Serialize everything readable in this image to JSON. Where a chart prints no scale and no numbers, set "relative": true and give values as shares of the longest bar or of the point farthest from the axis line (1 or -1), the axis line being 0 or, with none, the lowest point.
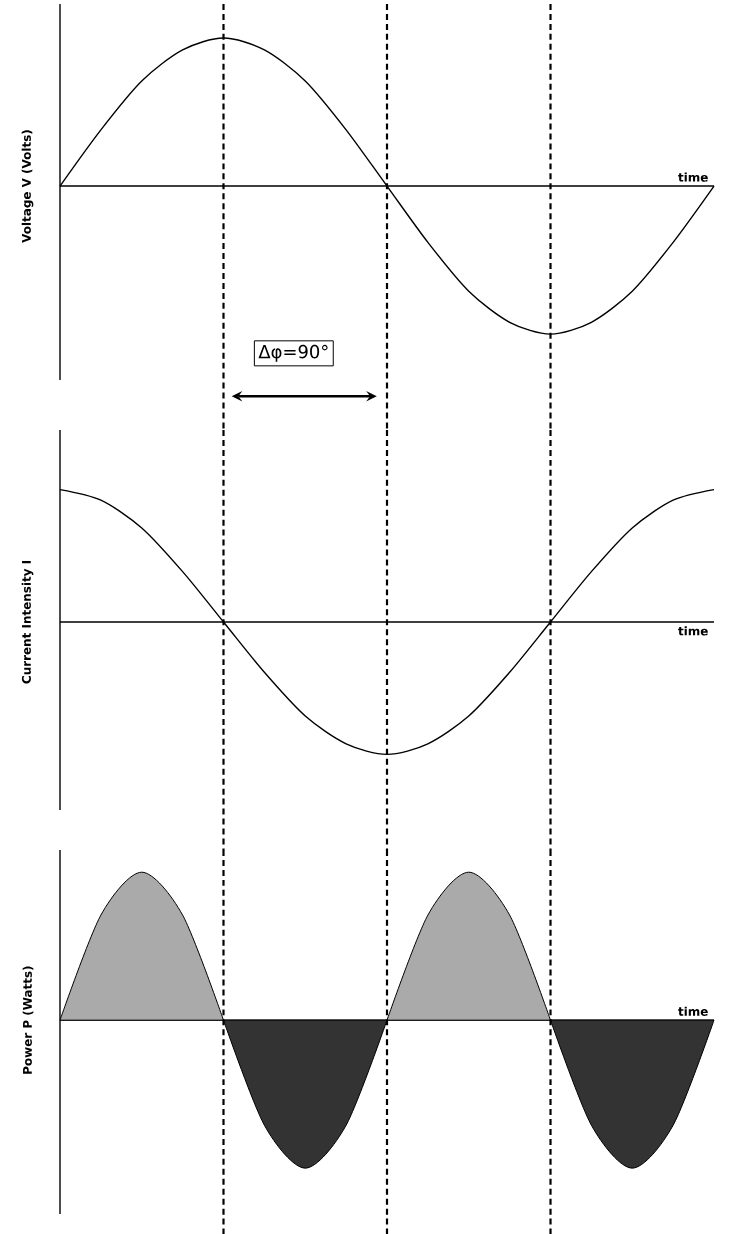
{
  "chart_data": [
    {
      "type": "line",
      "ylabel": "Voltage V (Volts)",
      "xlabel": "time",
      "relative": true,
      "grid": "x",
      "categories": [
        null,
        null,
        null,
        null,
        null,
        null,
        null,
        null,
        null,
        null,
        null,
        null,
        null,
        null,
        null,
        null,
        null
      ],
      "series": [
        {
          "color": "#000000",
          "values": [
            0,
            0.38,
            0.71,
            0.92,
            1,
            0.92,
            0.71,
            0.38,
            0,
            -0.38,
            -0.71,
            -0.92,
            -1,
            -0.92,
            -0.71,
            -0.38,
            0
          ]
        }
      ],
      "annotations": [
        "Δφ=90°"
      ]
    },
    {
      "type": "line",
      "ylabel": "Current Intensity I",
      "xlabel": "time",
      "relative": true,
      "grid": "x",
      "categories": [
        null,
        null,
        null,
        null,
        null,
        null,
        null,
        null,
        null,
        null,
        null,
        null,
        null,
        null,
        null,
        null,
        null
      ],
      "series": [
        {
          "color": "#000000",
          "values": [
            1,
            0.92,
            0.71,
            0.38,
            0,
            -0.38,
            -0.71,
            -0.92,
            -1,
            -0.92,
            -0.71,
            -0.38,
            0,
            0.38,
            0.71,
            0.92,
            1
          ]
        }
      ]
    },
    {
      "type": "area",
      "ylabel": "Power P (Watts)",
      "xlabel": "time",
      "relative": true,
      "grid": "x",
      "categories": [
        null,
        null,
        null,
        null,
        null,
        null,
        null,
        null,
        null,
        null,
        null,
        null,
        null,
        null,
        null,
        null,
        null
      ],
      "series": [
        {
          "color": "#aaaaaa",
          "values": [
            0,
            0.71,
            1,
            0.71,
            0,
            null,
            null,
            null,
            0,
            0.71,
            1,
            0.71,
            0,
            null,
            null,
            null,
            null
          ]
        },
        {
          "color": "#333333",
          "values": [
            null,
            null,
            null,
            null,
            0,
            -0.71,
            -1,
            -0.71,
            0,
            null,
            null,
            null,
            0,
            -0.71,
            -1,
            -0.71,
            0
          ]
        }
      ]
    }
  ]
}
